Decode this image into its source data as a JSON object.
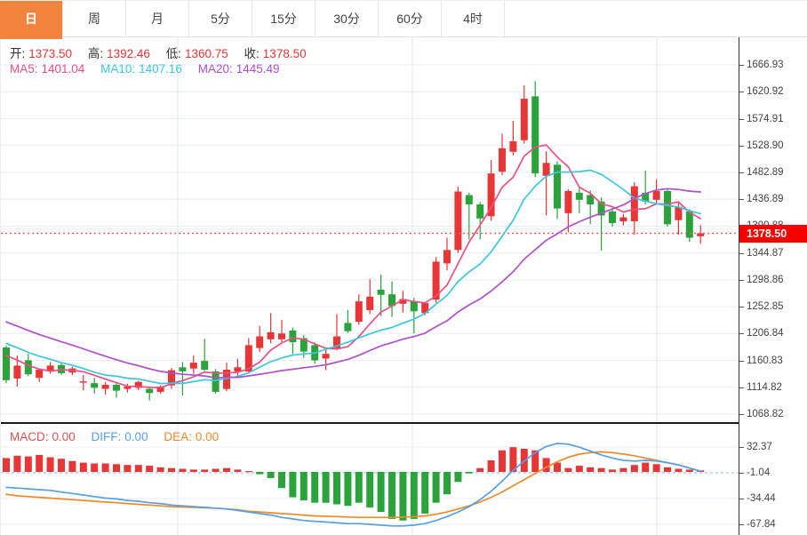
{
  "tabs": {
    "items": [
      {
        "label": "日",
        "active": true
      },
      {
        "label": "周",
        "active": false
      },
      {
        "label": "月",
        "active": false
      },
      {
        "label": "5分",
        "active": false
      },
      {
        "label": "15分",
        "active": false
      },
      {
        "label": "30分",
        "active": false
      },
      {
        "label": "60分",
        "active": false
      },
      {
        "label": "4时",
        "active": false
      }
    ],
    "active_bg": "#f0843e"
  },
  "readout": {
    "open_label": "开:",
    "open": "1373.50",
    "high_label": "高:",
    "high": "1392.46",
    "low_label": "低:",
    "low": "1360.75",
    "close_label": "收:",
    "close": "1378.50",
    "ma5_label": "MA5:",
    "ma5": "1401.04",
    "ma10_label": "MA10:",
    "ma10": "1407.16",
    "ma20_label": "MA20:",
    "ma20": "1445.49"
  },
  "macd_readout": {
    "macd_label": "MACD:",
    "macd": "0.00",
    "diff_label": "DIFF:",
    "diff": "0.00",
    "dea_label": "DEA:",
    "dea": "0.00"
  },
  "price_axis": {
    "labels": [
      "1666.93",
      "1620.92",
      "1574.91",
      "1528.90",
      "1482.89",
      "1436.89",
      "1390.88",
      "1344.87",
      "1298.86",
      "1252.85",
      "1206.84",
      "1160.83",
      "1114.82",
      "1068.82"
    ],
    "current": "1378.50"
  },
  "macd_axis": {
    "labels": [
      "32.37",
      "-1.04",
      "-34.44",
      "-67.84"
    ]
  },
  "colors": {
    "up": "#e83536",
    "down": "#2ba33b",
    "ma5": "#ee4f82",
    "ma10": "#3bc8dc",
    "ma20": "#ae52c8",
    "diff": "#57a0e4",
    "dea": "#ef8a2a",
    "macd_text": "#dd5252",
    "value_red": "#e83536",
    "grid": "#e7edf4",
    "vgrid": "#dfe7f0",
    "zero_dash": "#b5d3ec",
    "dotted_price": "#ff5a5a",
    "tag_bg": "#fb0000",
    "active_tab": "#f0843e"
  },
  "chart_data": {
    "type": "candlestick",
    "title": "",
    "panels": [
      "price",
      "macd"
    ],
    "current_price": 1378.5,
    "price_ticks": [
      1666.93,
      1620.92,
      1574.91,
      1528.9,
      1482.89,
      1436.89,
      1390.88,
      1344.87,
      1298.86,
      1252.85,
      1206.84,
      1160.83,
      1114.82,
      1068.82
    ],
    "candles_ohlc": [
      [
        1183,
        1186,
        1122,
        1127
      ],
      [
        1130,
        1169,
        1116,
        1152
      ],
      [
        1161,
        1172,
        1134,
        1137
      ],
      [
        1131,
        1147,
        1124,
        1145
      ],
      [
        1142,
        1158,
        1138,
        1152
      ],
      [
        1153,
        1156,
        1136,
        1139
      ],
      [
        1140,
        1150,
        1136,
        1147
      ],
      [
        1124,
        1136,
        1110,
        1125
      ],
      [
        1122,
        1131,
        1104,
        1114
      ],
      [
        1112,
        1124,
        1102,
        1119
      ],
      [
        1119,
        1123,
        1097,
        1109
      ],
      [
        1112,
        1121,
        1106,
        1116
      ],
      [
        1114,
        1126,
        1110,
        1124
      ],
      [
        1112,
        1116,
        1092,
        1105
      ],
      [
        1107,
        1118,
        1104,
        1116
      ],
      [
        1118,
        1148,
        1112,
        1144
      ],
      [
        1149,
        1158,
        1101,
        1142
      ],
      [
        1147,
        1169,
        1138,
        1157
      ],
      [
        1160,
        1198,
        1143,
        1145
      ],
      [
        1142,
        1146,
        1104,
        1107
      ],
      [
        1112,
        1157,
        1108,
        1145
      ],
      [
        1142,
        1164,
        1134,
        1149
      ],
      [
        1142,
        1199,
        1138,
        1187
      ],
      [
        1182,
        1220,
        1175,
        1202
      ],
      [
        1197,
        1242,
        1190,
        1209
      ],
      [
        1197,
        1230,
        1192,
        1207
      ],
      [
        1212,
        1217,
        1172,
        1192
      ],
      [
        1199,
        1204,
        1165,
        1176
      ],
      [
        1187,
        1192,
        1155,
        1161
      ],
      [
        1164,
        1180,
        1144,
        1172
      ],
      [
        1182,
        1240,
        1178,
        1202
      ],
      [
        1225,
        1247,
        1208,
        1211
      ],
      [
        1227,
        1274,
        1222,
        1262
      ],
      [
        1247,
        1300,
        1240,
        1270
      ],
      [
        1282,
        1308,
        1237,
        1273
      ],
      [
        1274,
        1296,
        1235,
        1254
      ],
      [
        1258,
        1280,
        1243,
        1266
      ],
      [
        1262,
        1268,
        1207,
        1245
      ],
      [
        1242,
        1261,
        1238,
        1259
      ],
      [
        1265,
        1338,
        1260,
        1330
      ],
      [
        1327,
        1371,
        1315,
        1350
      ],
      [
        1350,
        1458,
        1345,
        1450
      ],
      [
        1444,
        1448,
        1368,
        1428
      ],
      [
        1428,
        1432,
        1368,
        1404
      ],
      [
        1408,
        1504,
        1400,
        1481
      ],
      [
        1484,
        1549,
        1478,
        1524
      ],
      [
        1518,
        1571,
        1512,
        1536
      ],
      [
        1538,
        1632,
        1532,
        1609
      ],
      [
        1613,
        1639,
        1475,
        1481
      ],
      [
        1477,
        1519,
        1409,
        1499
      ],
      [
        1496,
        1502,
        1403,
        1421
      ],
      [
        1413,
        1454,
        1380,
        1451
      ],
      [
        1448,
        1456,
        1413,
        1436
      ],
      [
        1444,
        1452,
        1394,
        1428
      ],
      [
        1433,
        1440,
        1349,
        1409
      ],
      [
        1416,
        1422,
        1390,
        1396
      ],
      [
        1399,
        1412,
        1392,
        1406
      ],
      [
        1399,
        1466,
        1376,
        1459
      ],
      [
        1448,
        1486,
        1428,
        1433
      ],
      [
        1436,
        1471,
        1430,
        1451
      ],
      [
        1451,
        1453,
        1390,
        1394
      ],
      [
        1401,
        1433,
        1376,
        1424
      ],
      [
        1416,
        1420,
        1364,
        1371
      ],
      [
        1373.5,
        1392.46,
        1360.75,
        1378.5
      ]
    ],
    "ma_periods": [
      5,
      10,
      20
    ],
    "seed_closes_for_ma": [
      1302,
      1295,
      1288,
      1281,
      1274,
      1267,
      1260,
      1253,
      1246,
      1239,
      1232,
      1225,
      1218,
      1211,
      1204,
      1197,
      1190,
      1183,
      1176,
      1169
    ],
    "vertical_grid_x": [
      199,
      463,
      738
    ],
    "macd": {
      "ticks": [
        32.37,
        -1.04,
        -34.44,
        -67.84
      ],
      "zero": -1.04,
      "hist": [
        18,
        21,
        20,
        22,
        19,
        17,
        14,
        12,
        11,
        11,
        10,
        9,
        9,
        8,
        6,
        5,
        4,
        3,
        3,
        4,
        5,
        3,
        1,
        -3,
        -8,
        -21,
        -33,
        -37,
        -40,
        -40,
        -42,
        -44,
        -40,
        -46,
        -52,
        -61,
        -63,
        -61,
        -54,
        -40,
        -29,
        -13,
        -2,
        5,
        15,
        28,
        32,
        30,
        28,
        18,
        12,
        5,
        8,
        6,
        5,
        3,
        5,
        9,
        12,
        10,
        6,
        4,
        3,
        2
      ],
      "diff": [
        -20,
        -21,
        -22,
        -23,
        -24,
        -26,
        -28,
        -30,
        -32,
        -34,
        -35,
        -37,
        -38,
        -40,
        -41,
        -43,
        -44,
        -45,
        -46,
        -47,
        -48,
        -50,
        -52,
        -54,
        -56,
        -59,
        -61,
        -63,
        -64,
        -65,
        -66,
        -67,
        -67,
        -68,
        -69,
        -70,
        -70,
        -69,
        -67,
        -63,
        -58,
        -52,
        -45,
        -36,
        -25,
        -12,
        2,
        14,
        25,
        33,
        37,
        36,
        32,
        27,
        22,
        18,
        15,
        14,
        15,
        14,
        12,
        9,
        5,
        1
      ],
      "dea": [
        -29,
        -31,
        -32,
        -33,
        -34,
        -35,
        -36,
        -37,
        -38,
        -39,
        -40,
        -41,
        -42,
        -43,
        -44,
        -45,
        -45.5,
        -46,
        -46.5,
        -47,
        -48,
        -49,
        -51,
        -52,
        -53,
        -54,
        -55,
        -56,
        -57,
        -57.5,
        -58,
        -58.5,
        -59,
        -59,
        -59,
        -59,
        -58.5,
        -58,
        -57,
        -55,
        -52,
        -48,
        -44,
        -39,
        -33,
        -26,
        -18,
        -10,
        -2,
        6,
        13,
        19,
        23,
        25,
        26,
        25,
        23,
        21,
        18,
        15,
        12,
        9,
        5,
        1
      ]
    }
  }
}
